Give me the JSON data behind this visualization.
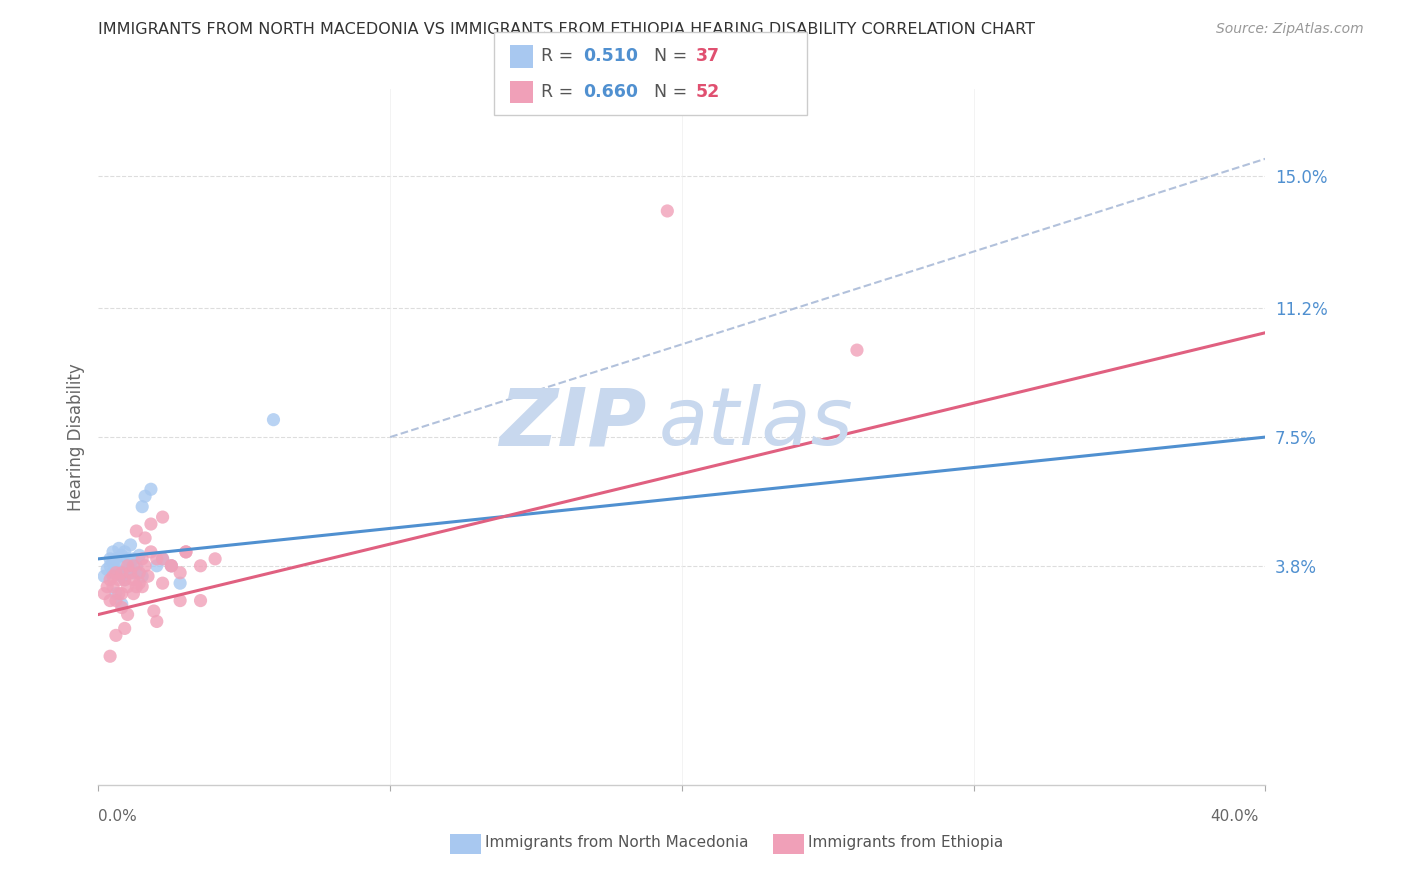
{
  "title": "IMMIGRANTS FROM NORTH MACEDONIA VS IMMIGRANTS FROM ETHIOPIA HEARING DISABILITY CORRELATION CHART",
  "source": "Source: ZipAtlas.com",
  "ylabel": "Hearing Disability",
  "ytick_labels": [
    "15.0%",
    "11.2%",
    "7.5%",
    "3.8%"
  ],
  "ytick_values": [
    0.15,
    0.112,
    0.075,
    0.038
  ],
  "xlim": [
    0.0,
    0.4
  ],
  "ylim": [
    -0.025,
    0.175
  ],
  "color_blue": "#A8C8F0",
  "color_pink": "#F0A0B8",
  "color_blue_line": "#5090D0",
  "color_pink_line": "#E06080",
  "color_dashed": "#AABBD8",
  "watermark_top": "ZIP",
  "watermark_bottom": "atlas",
  "watermark_color": "#C8D8EE",
  "north_mac_x": [
    0.002,
    0.003,
    0.004,
    0.004,
    0.005,
    0.005,
    0.005,
    0.006,
    0.006,
    0.007,
    0.007,
    0.008,
    0.008,
    0.009,
    0.009,
    0.01,
    0.01,
    0.011,
    0.011,
    0.012,
    0.012,
    0.013,
    0.014,
    0.015,
    0.016,
    0.018,
    0.02,
    0.022,
    0.025,
    0.028,
    0.015,
    0.013,
    0.06,
    0.008,
    0.006,
    0.009,
    0.011
  ],
  "north_mac_y": [
    0.035,
    0.037,
    0.038,
    0.04,
    0.036,
    0.039,
    0.042,
    0.037,
    0.04,
    0.038,
    0.043,
    0.035,
    0.041,
    0.036,
    0.042,
    0.037,
    0.04,
    0.039,
    0.044,
    0.036,
    0.04,
    0.038,
    0.041,
    0.055,
    0.058,
    0.06,
    0.038,
    0.04,
    0.038,
    0.033,
    0.035,
    0.036,
    0.08,
    0.027,
    0.03,
    0.034,
    0.037
  ],
  "ethiopia_x": [
    0.002,
    0.003,
    0.004,
    0.004,
    0.005,
    0.005,
    0.006,
    0.006,
    0.007,
    0.007,
    0.008,
    0.008,
    0.009,
    0.01,
    0.01,
    0.011,
    0.012,
    0.012,
    0.013,
    0.014,
    0.015,
    0.016,
    0.018,
    0.02,
    0.022,
    0.025,
    0.028,
    0.03,
    0.035,
    0.04,
    0.013,
    0.018,
    0.022,
    0.016,
    0.009,
    0.006,
    0.004,
    0.019,
    0.025,
    0.03,
    0.012,
    0.008,
    0.035,
    0.02,
    0.015,
    0.01,
    0.195,
    0.26,
    0.014,
    0.017,
    0.022,
    0.028
  ],
  "ethiopia_y": [
    0.03,
    0.032,
    0.034,
    0.028,
    0.035,
    0.032,
    0.028,
    0.036,
    0.03,
    0.034,
    0.036,
    0.03,
    0.034,
    0.032,
    0.038,
    0.036,
    0.034,
    0.038,
    0.032,
    0.036,
    0.04,
    0.038,
    0.042,
    0.04,
    0.04,
    0.038,
    0.036,
    0.042,
    0.038,
    0.04,
    0.048,
    0.05,
    0.052,
    0.046,
    0.02,
    0.018,
    0.012,
    0.025,
    0.038,
    0.042,
    0.03,
    0.026,
    0.028,
    0.022,
    0.032,
    0.024,
    0.14,
    0.1,
    0.033,
    0.035,
    0.033,
    0.028
  ],
  "mac_line_x": [
    0.0,
    0.4
  ],
  "mac_line_y": [
    0.04,
    0.075
  ],
  "eth_line_x": [
    0.0,
    0.4
  ],
  "eth_line_y": [
    0.024,
    0.105
  ],
  "dashed_line_x": [
    0.1,
    0.4
  ],
  "dashed_line_y": [
    0.075,
    0.155
  ]
}
